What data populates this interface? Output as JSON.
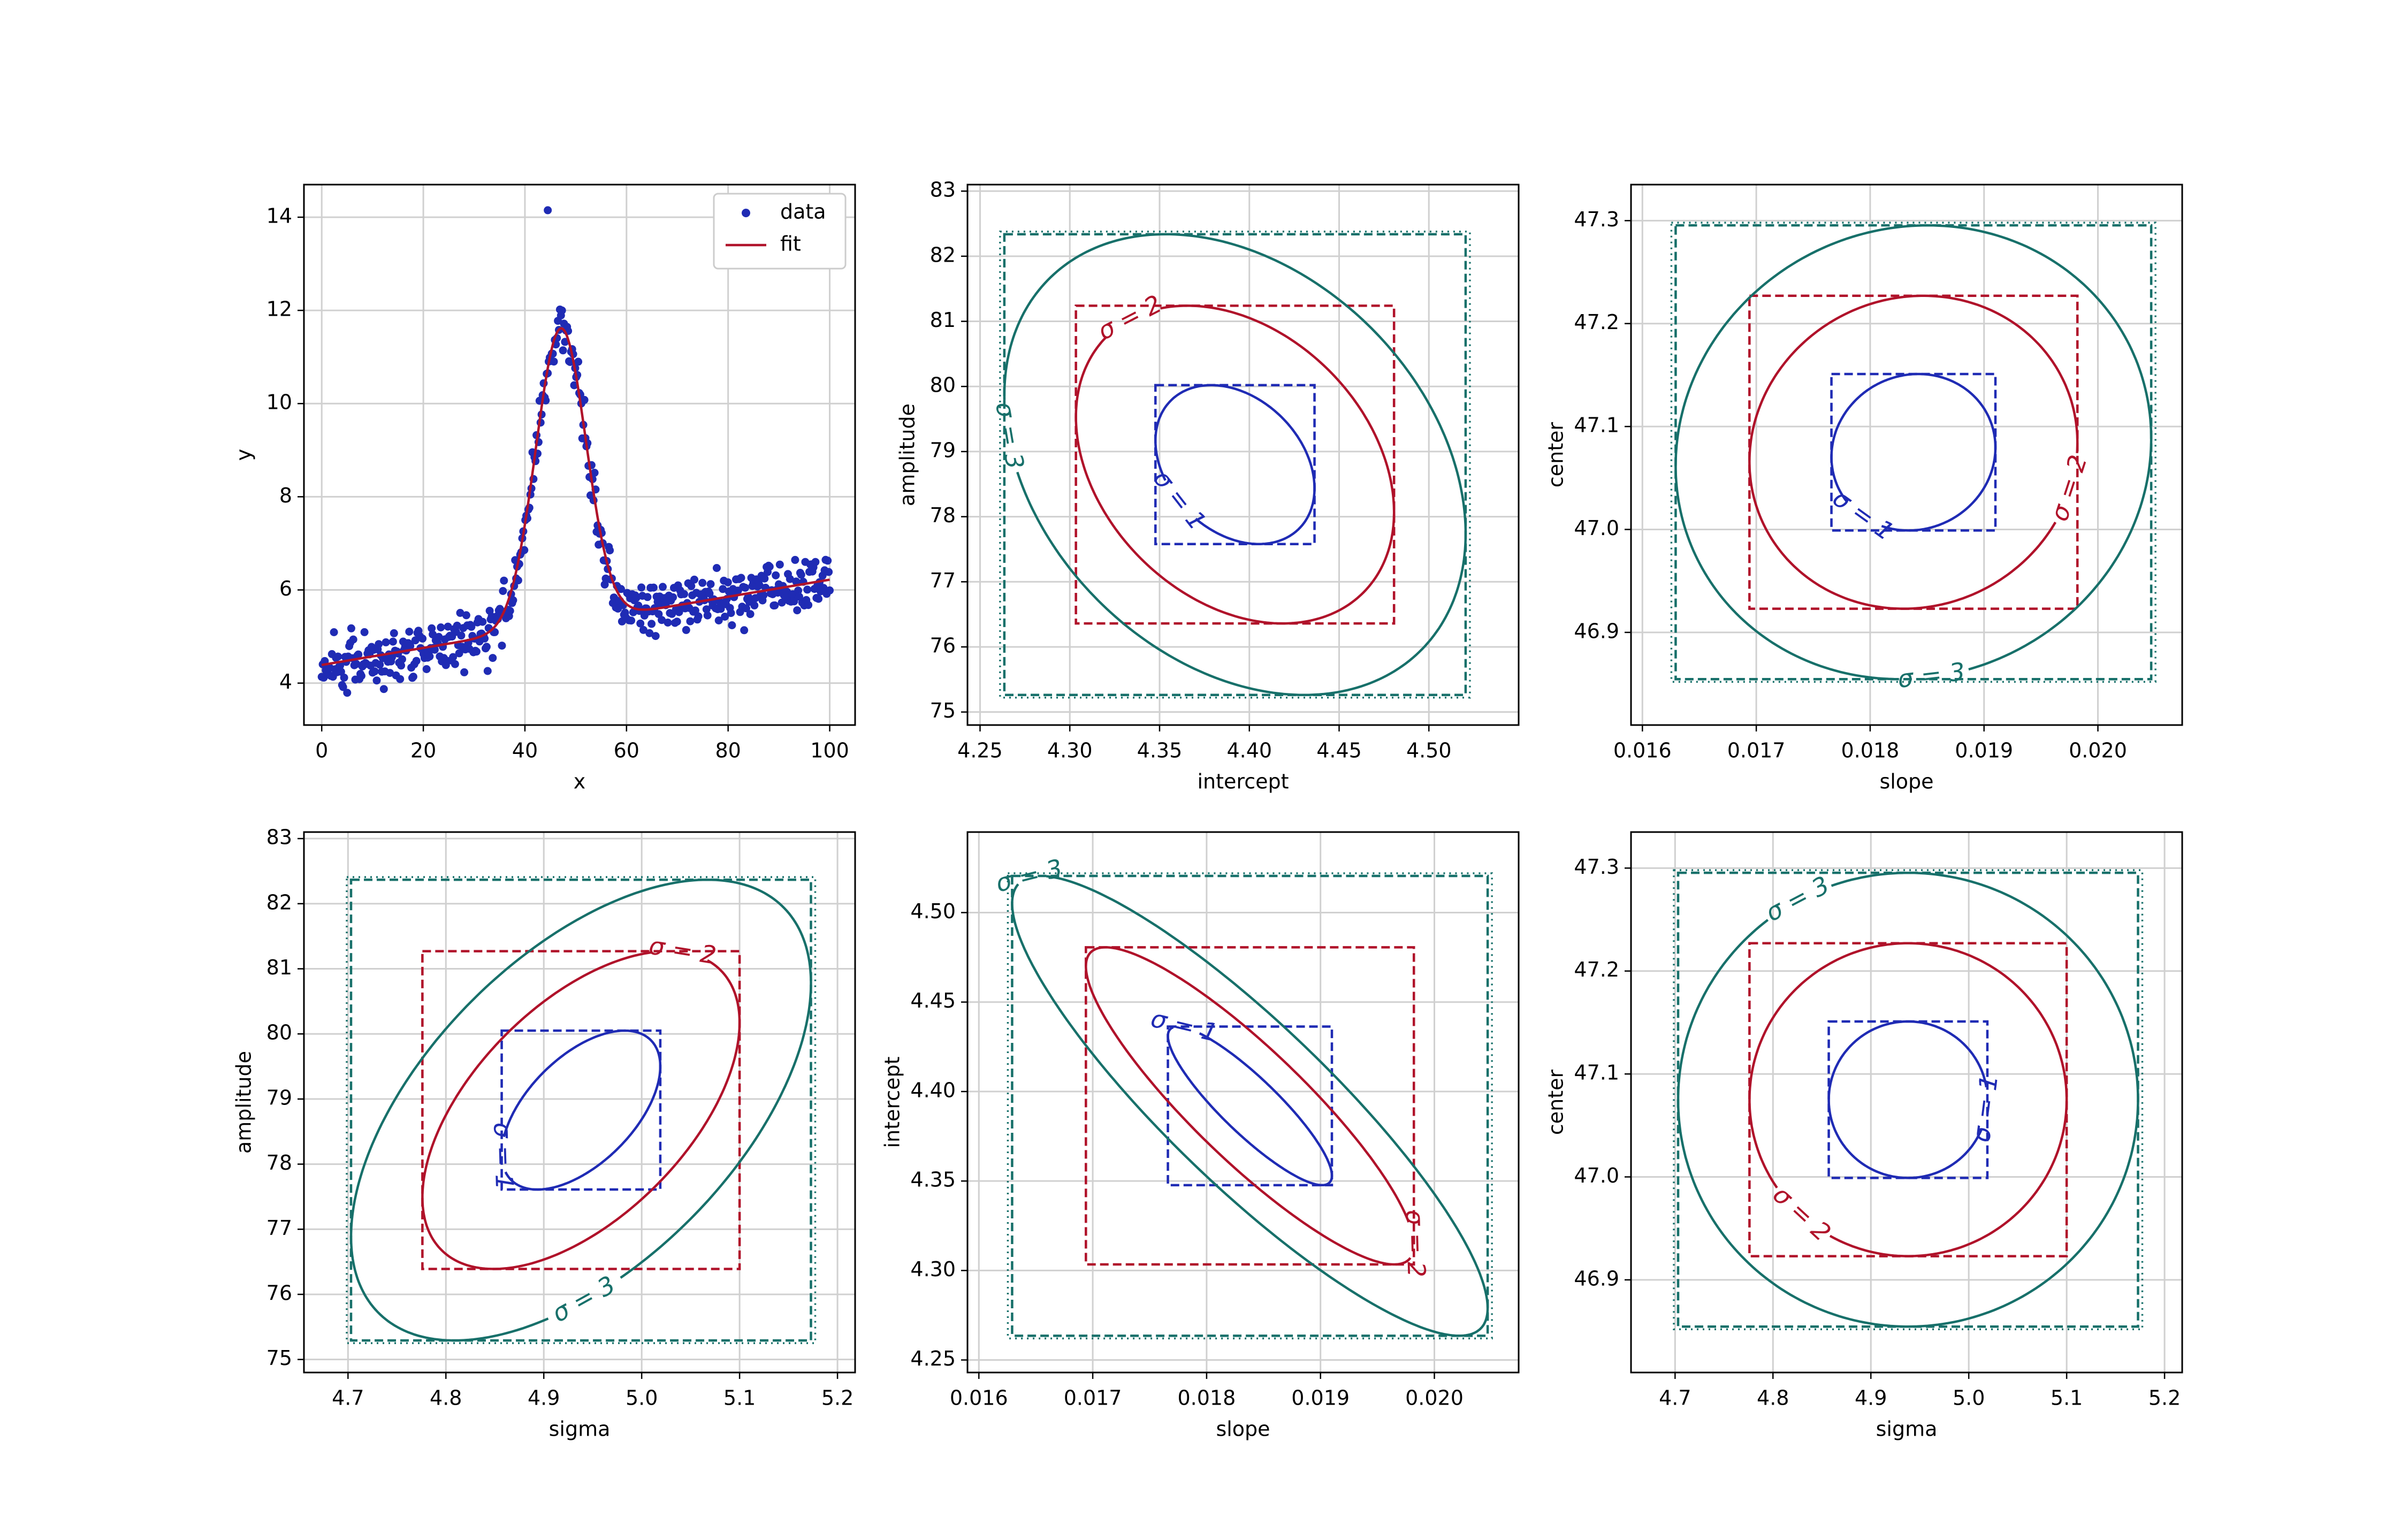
{
  "figure": {
    "background": "#ffffff"
  },
  "colors": {
    "sigma1": "#1f2bb4",
    "sigma2": "#b0122a",
    "sigma3": "#17706a",
    "data": "#1f2bb4",
    "fit": "#b0122a",
    "grid": "#d0d0d0"
  },
  "chart_data": [
    {
      "type": "scatter",
      "xlabel": "x",
      "ylabel": "y",
      "xlim": [
        -3.5,
        105
      ],
      "ylim": [
        3.1,
        14.7
      ],
      "xticks": [
        0,
        20,
        40,
        60,
        80,
        100
      ],
      "yticks": [
        4,
        6,
        8,
        10,
        12,
        14
      ],
      "legend": {
        "placement": "top-right",
        "entries": [
          "data",
          "fit"
        ]
      },
      "series": [
        {
          "name": "data",
          "kind": "points",
          "n": 500,
          "x_range": [
            0,
            100
          ],
          "outlier": [
            44.5,
            14.15
          ]
        },
        {
          "name": "fit",
          "kind": "line",
          "model": "linear+gaussian",
          "intercept": 4.39,
          "slope": 0.0183,
          "amplitude": 78.8,
          "center": 47.07,
          "sigma": 4.94
        }
      ]
    },
    {
      "type": "contour",
      "xlabel": "intercept",
      "ylabel": "amplitude",
      "xlim": [
        4.243,
        4.55
      ],
      "ylim": [
        74.8,
        83.1
      ],
      "xticks": [
        "4.25",
        "4.30",
        "4.35",
        "4.40",
        "4.45",
        "4.50"
      ],
      "yticks": [
        "75",
        "76",
        "77",
        "78",
        "79",
        "80",
        "81",
        "82",
        "83"
      ],
      "center": [
        4.392,
        78.8
      ],
      "sd": [
        0.0443,
        1.22
      ],
      "rho": -0.3,
      "labels": [
        "σ = 1",
        "σ = 2",
        "σ = 3"
      ]
    },
    {
      "type": "contour",
      "xlabel": "slope",
      "ylabel": "center",
      "xlim": [
        0.0159,
        0.02074
      ],
      "ylim": [
        46.81,
        47.335
      ],
      "xticks": [
        "0.016",
        "0.017",
        "0.018",
        "0.019",
        "0.020"
      ],
      "yticks": [
        "46.9",
        "47.0",
        "47.1",
        "47.2",
        "47.3"
      ],
      "center": [
        0.01838,
        47.075
      ],
      "sd": [
        0.00072,
        0.076
      ],
      "rho": 0.06,
      "labels": [
        "σ = 1",
        "σ = 2",
        "σ = 3"
      ]
    },
    {
      "type": "contour",
      "xlabel": "sigma",
      "ylabel": "amplitude",
      "xlim": [
        4.655,
        5.218
      ],
      "ylim": [
        74.8,
        83.1
      ],
      "xticks": [
        "4.7",
        "4.8",
        "4.9",
        "5.0",
        "5.1",
        "5.2"
      ],
      "yticks": [
        "75",
        "76",
        "77",
        "78",
        "79",
        "80",
        "81",
        "82",
        "83"
      ],
      "center": [
        4.938,
        78.83
      ],
      "sd": [
        0.081,
        1.22
      ],
      "rho": 0.55,
      "labels": [
        "σ = 1",
        "σ = 2",
        "σ = 3"
      ]
    },
    {
      "type": "contour",
      "xlabel": "slope",
      "ylabel": "intercept",
      "xlim": [
        0.0159,
        0.02074
      ],
      "ylim": [
        4.243,
        4.545
      ],
      "xticks": [
        "0.016",
        "0.017",
        "0.018",
        "0.019",
        "0.020"
      ],
      "yticks": [
        "4.25",
        "4.30",
        "4.35",
        "4.40",
        "4.45",
        "4.50"
      ],
      "center": [
        0.01838,
        4.392
      ],
      "sd": [
        0.00072,
        0.0443
      ],
      "rho": -0.88,
      "labels": [
        "σ = 1",
        "σ = 2",
        "σ = 3"
      ]
    },
    {
      "type": "contour",
      "xlabel": "sigma",
      "ylabel": "center",
      "xlim": [
        4.655,
        5.218
      ],
      "ylim": [
        46.81,
        47.335
      ],
      "xticks": [
        "4.7",
        "4.8",
        "4.9",
        "5.0",
        "5.1",
        "5.2"
      ],
      "yticks": [
        "46.9",
        "47.0",
        "47.1",
        "47.2",
        "47.3"
      ],
      "center": [
        4.938,
        47.075
      ],
      "sd": [
        0.081,
        0.076
      ],
      "rho": 0.0,
      "labels": [
        "σ = 1",
        "σ = 2",
        "σ = 3"
      ]
    }
  ]
}
